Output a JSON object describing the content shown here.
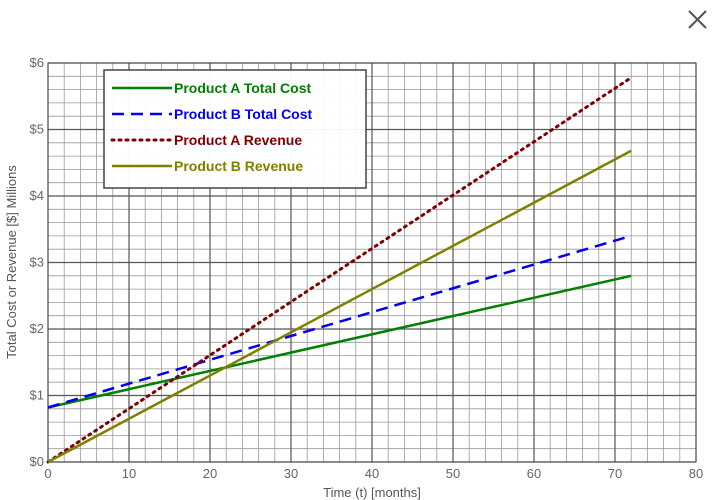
{
  "close_icon": "close-icon",
  "chart_data": {
    "type": "line",
    "title": "",
    "xlabel": "Time (t) [months]",
    "ylabel": "Total Cost or Revenue [$] Millions",
    "xlim": [
      0,
      80
    ],
    "ylim": [
      0,
      6
    ],
    "x_ticks": [
      0,
      10,
      20,
      30,
      40,
      50,
      60,
      70,
      80
    ],
    "x_tick_labels": [
      "0",
      "10",
      "20",
      "30",
      "40",
      "50",
      "60",
      "70",
      "80"
    ],
    "y_ticks": [
      0,
      1,
      2,
      3,
      4,
      5,
      6
    ],
    "y_tick_labels": [
      "$0",
      "$1",
      "$2",
      "$3",
      "$4",
      "$5",
      "$6"
    ],
    "grid": true,
    "legend_position": "top-left",
    "series": [
      {
        "name": "Product A Total Cost",
        "color": "#008000",
        "style": "solid",
        "x": [
          0,
          72
        ],
        "y": [
          0.82,
          2.8
        ]
      },
      {
        "name": "Product B Total Cost",
        "color": "#0000ee",
        "style": "dashed",
        "x": [
          0,
          72
        ],
        "y": [
          0.82,
          3.4
        ]
      },
      {
        "name": "Product A Revenue",
        "color": "#800000",
        "style": "dotted",
        "x": [
          0,
          72
        ],
        "y": [
          0,
          5.78
        ]
      },
      {
        "name": "Product B Revenue",
        "color": "#808000",
        "style": "solid",
        "x": [
          0,
          72
        ],
        "y": [
          0,
          4.68
        ]
      }
    ]
  }
}
